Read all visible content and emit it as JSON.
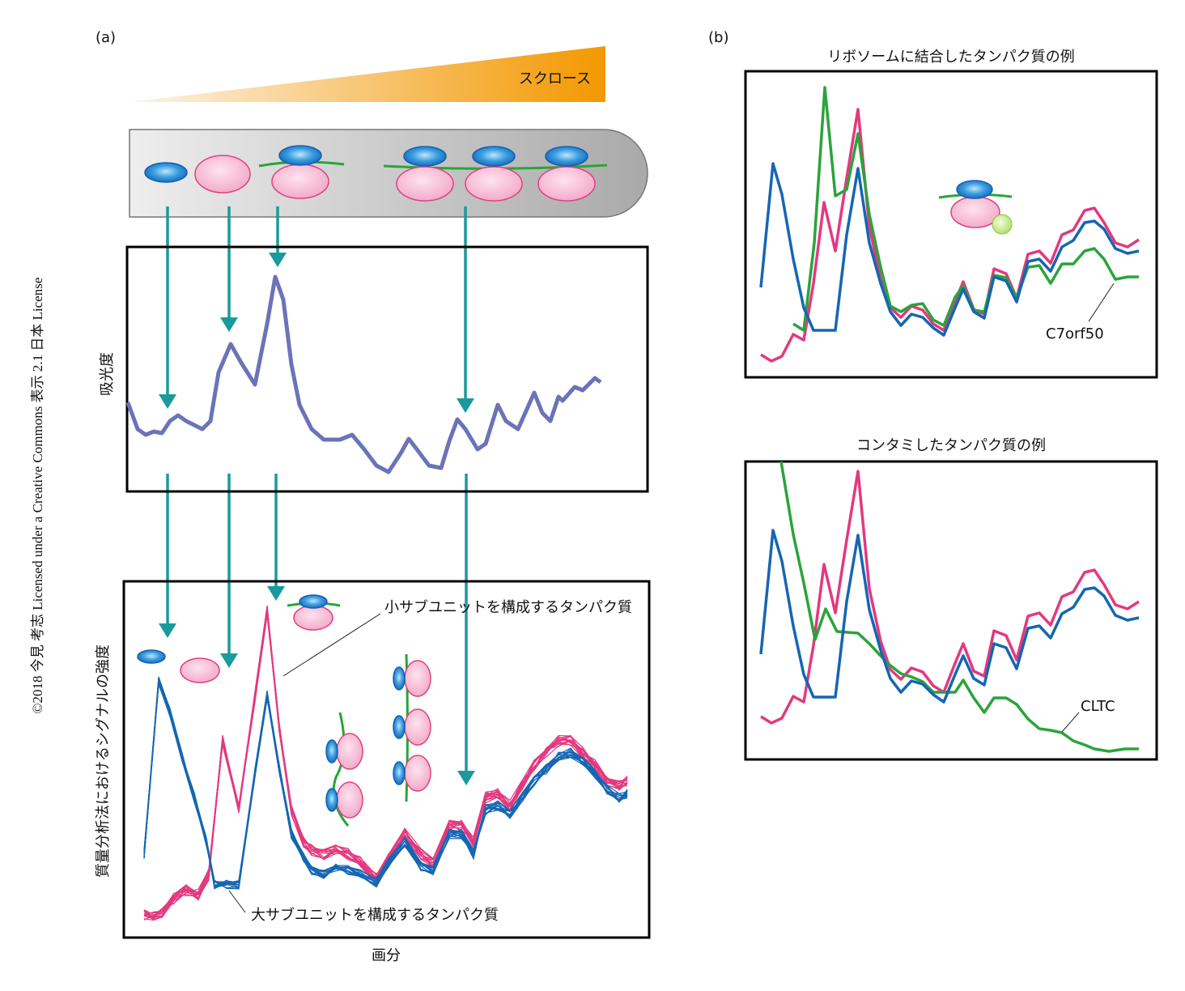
{
  "copyright": "©2018 今見 考志 Licensed under a Creative Commons 表示 2.1 日本 License",
  "panel_a": {
    "label": "(a)",
    "gradient_label": "スクロース",
    "absorbance": {
      "ylabel": "吸光度"
    },
    "ms": {
      "ylabel": "質量分析法におけるシグナルの強度",
      "xlabel": "画分",
      "small_subunit_label": "小サブユニットを構成するタンパク質",
      "large_subunit_label": "大サブユニットを構成するタンパク質"
    }
  },
  "panel_b": {
    "label": "(b)",
    "charts": [
      {
        "title": "リボソームに結合したタンパク質の例",
        "protein": "C7orf50"
      },
      {
        "title": "コンタミしたタンパク質の例",
        "protein": "CLTC"
      }
    ]
  }
}
